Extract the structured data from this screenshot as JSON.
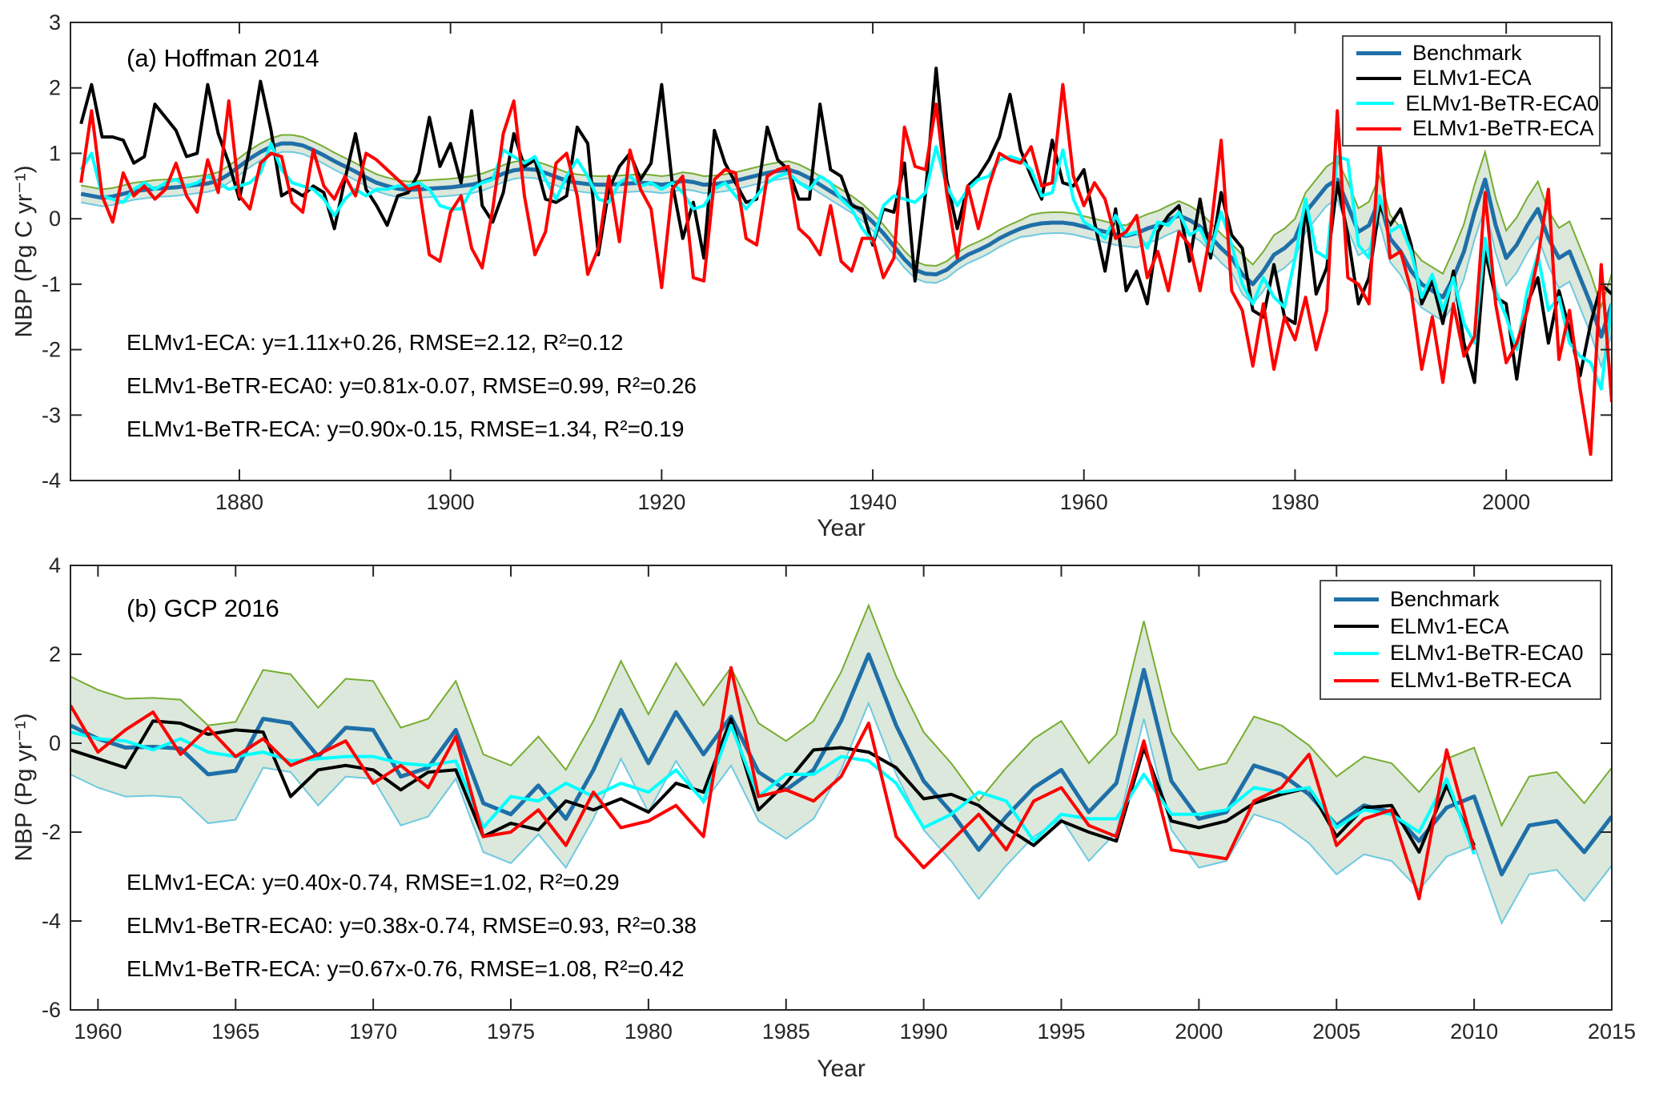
{
  "figure": {
    "background": "#ffffff",
    "axis_color": "#262626",
    "text_color": "#000000"
  },
  "chart_data": [
    {
      "panel": "a",
      "type": "line",
      "title": "(a) Hoffman 2014",
      "xlabel": "Year",
      "ylabel": "NBP (Pg C yr⁻¹)",
      "xlim": [
        1864,
        2010
      ],
      "ylim": [
        -4,
        3
      ],
      "xticks": [
        1880,
        1900,
        1920,
        1940,
        1960,
        1980,
        2000
      ],
      "yticks": [
        -4,
        -3,
        -2,
        -1,
        0,
        1,
        2,
        3
      ],
      "grid": false,
      "legend_position": "top-right",
      "year_start": 1865,
      "band": {
        "name": "benchmark-uncertainty",
        "fill": "rgba(147,186,147,0.33)",
        "upper_color": "#77ac30",
        "lower_color": "#6ec9e0",
        "halfwidth_segments": [
          [
            90,
            0.13
          ],
          [
            10,
            0.16
          ],
          [
            10,
            0.22
          ],
          [
            10,
            0.3
          ],
          [
            10,
            0.36
          ],
          [
            10,
            0.42
          ],
          [
            6,
            0.46
          ]
        ]
      },
      "series": [
        {
          "name": "Benchmark",
          "color": "#1f6fa8",
          "width": 5,
          "values": [
            0.38,
            0.35,
            0.32,
            0.34,
            0.38,
            0.42,
            0.44,
            0.46,
            0.47,
            0.48,
            0.5,
            0.52,
            0.54,
            0.58,
            0.68,
            0.8,
            0.92,
            1.02,
            1.1,
            1.15,
            1.15,
            1.12,
            1.05,
            0.97,
            0.88,
            0.8,
            0.72,
            0.63,
            0.55,
            0.5,
            0.46,
            0.44,
            0.45,
            0.46,
            0.47,
            0.48,
            0.5,
            0.52,
            0.56,
            0.62,
            0.69,
            0.74,
            0.76,
            0.75,
            0.7,
            0.64,
            0.58,
            0.55,
            0.53,
            0.52,
            0.52,
            0.53,
            0.54,
            0.55,
            0.54,
            0.52,
            0.54,
            0.58,
            0.56,
            0.52,
            0.53,
            0.55,
            0.58,
            0.62,
            0.66,
            0.7,
            0.73,
            0.75,
            0.7,
            0.62,
            0.52,
            0.42,
            0.32,
            0.22,
            0.1,
            -0.05,
            -0.22,
            -0.42,
            -0.62,
            -0.78,
            -0.84,
            -0.85,
            -0.78,
            -0.65,
            -0.55,
            -0.48,
            -0.4,
            -0.3,
            -0.22,
            -0.15,
            -0.1,
            -0.07,
            -0.06,
            -0.06,
            -0.08,
            -0.12,
            -0.16,
            -0.2,
            -0.24,
            -0.26,
            -0.22,
            -0.15,
            -0.1,
            -0.02,
            0.05,
            -0.02,
            -0.12,
            -0.28,
            -0.45,
            -0.6,
            -0.85,
            -1.0,
            -0.8,
            -0.55,
            -0.45,
            -0.3,
            0.1,
            0.3,
            0.5,
            0.6,
            0.2,
            -0.2,
            -0.1,
            0.3,
            -0.3,
            -0.5,
            -0.8,
            -1.0,
            -1.1,
            -1.2,
            -0.9,
            -0.5,
            0.1,
            0.6,
            -0.1,
            -0.6,
            -0.4,
            -0.1,
            0.15,
            -0.3,
            -0.6,
            -0.5,
            -0.9,
            -1.3,
            -1.8,
            -1.3
          ]
        },
        {
          "name": "ELMv1-ECA",
          "color": "#000000",
          "width": 4,
          "values": [
            1.45,
            2.05,
            1.25,
            1.25,
            1.2,
            0.85,
            0.95,
            1.75,
            1.55,
            1.35,
            0.95,
            1.0,
            2.05,
            1.3,
            0.85,
            0.3,
            1.1,
            2.1,
            1.35,
            0.35,
            0.45,
            0.35,
            0.5,
            0.4,
            -0.15,
            0.6,
            1.3,
            0.45,
            0.2,
            -0.1,
            0.35,
            0.4,
            0.7,
            1.55,
            0.8,
            1.15,
            0.55,
            1.65,
            0.2,
            -0.05,
            0.4,
            1.3,
            0.8,
            0.9,
            0.3,
            0.25,
            0.35,
            1.4,
            1.15,
            -0.55,
            0.45,
            0.8,
            1.0,
            0.6,
            0.85,
            2.05,
            0.55,
            -0.3,
            0.25,
            -0.6,
            1.35,
            0.85,
            0.55,
            0.25,
            0.3,
            1.4,
            0.9,
            0.75,
            0.3,
            0.3,
            1.75,
            0.75,
            0.65,
            0.2,
            0.15,
            -0.4,
            0.15,
            0.1,
            0.85,
            -0.95,
            0.4,
            2.3,
            0.6,
            -0.15,
            0.5,
            0.65,
            0.9,
            1.25,
            1.9,
            1.05,
            0.65,
            0.3,
            1.2,
            0.55,
            0.5,
            0.75,
            -0.05,
            -0.8,
            0.15,
            -1.1,
            -0.8,
            -1.3,
            -0.2,
            0.05,
            0.2,
            -0.65,
            0.3,
            -0.6,
            0.4,
            -0.25,
            -0.45,
            -1.4,
            -1.5,
            -0.7,
            -1.5,
            -1.6,
            0.2,
            -1.15,
            -0.75,
            0.55,
            -0.25,
            -1.3,
            -0.9,
            0.2,
            -0.1,
            0.15,
            -0.4,
            -1.3,
            -0.95,
            -1.6,
            -0.8,
            -1.9,
            -2.5,
            -0.5,
            -1.2,
            -1.3,
            -2.45,
            -1.3,
            -0.9,
            -1.9,
            -1.1,
            -1.7,
            -2.4,
            -1.6,
            -1.0,
            -1.15
          ]
        },
        {
          "name": "ELMv1-BeTR-ECA0",
          "color": "#00ffff",
          "width": 4,
          "values": [
            0.75,
            1.0,
            0.35,
            0.3,
            0.25,
            0.45,
            0.55,
            0.45,
            0.55,
            0.6,
            0.5,
            0.55,
            0.65,
            0.55,
            0.45,
            0.5,
            0.55,
            0.7,
            1.15,
            0.75,
            0.55,
            0.5,
            0.45,
            0.3,
            0.05,
            0.3,
            0.45,
            0.35,
            0.45,
            0.45,
            0.5,
            0.5,
            0.55,
            0.45,
            0.2,
            0.15,
            0.15,
            0.45,
            0.55,
            0.6,
            1.05,
            0.95,
            0.85,
            0.95,
            0.6,
            0.3,
            0.65,
            0.9,
            0.65,
            0.3,
            0.25,
            0.55,
            0.65,
            0.5,
            0.55,
            0.45,
            0.55,
            0.4,
            0.15,
            0.2,
            0.45,
            0.55,
            0.35,
            0.15,
            0.35,
            0.55,
            0.65,
            0.7,
            0.55,
            0.45,
            0.65,
            0.55,
            0.3,
            0.15,
            -0.15,
            -0.35,
            0.2,
            0.35,
            0.3,
            0.25,
            0.4,
            1.1,
            0.5,
            0.2,
            0.45,
            0.6,
            0.65,
            0.9,
            0.95,
            0.9,
            0.75,
            0.35,
            0.4,
            1.05,
            0.3,
            -0.05,
            -0.15,
            -0.3,
            0.05,
            -0.25,
            -0.2,
            -0.45,
            -0.05,
            -0.1,
            0.1,
            -0.25,
            -0.15,
            -0.5,
            0.1,
            -0.4,
            -1.0,
            -1.3,
            -0.9,
            -1.2,
            -1.35,
            -0.6,
            0.3,
            -0.5,
            -0.6,
            0.95,
            0.9,
            -0.4,
            -0.6,
            0.35,
            -0.2,
            -0.1,
            -0.5,
            -1.2,
            -0.85,
            -1.4,
            -0.9,
            -1.6,
            -1.9,
            -0.3,
            -1.1,
            -1.5,
            -2.0,
            -1.1,
            -0.55,
            -1.4,
            -1.2,
            -1.9,
            -2.1,
            -2.2,
            -2.6,
            -1.3
          ]
        },
        {
          "name": "ELMv1-BeTR-ECA",
          "color": "#ff0000",
          "width": 4,
          "values": [
            0.55,
            1.65,
            0.35,
            -0.05,
            0.7,
            0.35,
            0.5,
            0.3,
            0.45,
            0.85,
            0.35,
            0.1,
            0.9,
            0.4,
            1.8,
            0.35,
            0.15,
            0.85,
            1.0,
            0.95,
            0.25,
            0.1,
            1.05,
            0.5,
            0.3,
            0.65,
            0.35,
            1.0,
            0.9,
            0.75,
            0.6,
            0.45,
            0.5,
            -0.55,
            -0.65,
            0.1,
            0.35,
            -0.45,
            -0.75,
            0.15,
            1.3,
            1.8,
            0.35,
            -0.55,
            -0.2,
            0.85,
            1.0,
            0.35,
            -0.85,
            -0.45,
            0.65,
            -0.35,
            1.05,
            0.45,
            0.15,
            -1.05,
            0.45,
            0.65,
            -0.9,
            -0.95,
            0.6,
            0.75,
            0.7,
            -0.3,
            -0.4,
            0.65,
            0.75,
            0.8,
            -0.15,
            -0.3,
            -0.55,
            0.2,
            -0.65,
            -0.8,
            -0.3,
            -0.3,
            -0.9,
            -0.6,
            1.4,
            0.8,
            0.75,
            1.75,
            0.4,
            -0.6,
            0.5,
            -0.15,
            0.5,
            1.0,
            0.9,
            0.85,
            1.1,
            0.5,
            0.55,
            2.05,
            0.65,
            0.2,
            0.55,
            0.3,
            -0.3,
            -0.2,
            0.05,
            -0.9,
            -0.5,
            -1.1,
            -0.2,
            -0.4,
            -1.1,
            -0.2,
            1.2,
            -1.1,
            -1.4,
            -2.25,
            -1.3,
            -2.3,
            -1.5,
            -1.85,
            -1.2,
            -2.0,
            -1.4,
            1.65,
            -0.9,
            -1.0,
            -1.3,
            1.2,
            -0.6,
            -0.5,
            -1.1,
            -2.3,
            -1.5,
            -2.5,
            -1.3,
            -2.1,
            -1.8,
            0.4,
            -1.3,
            -2.2,
            -1.9,
            -1.4,
            -0.6,
            0.45,
            -2.15,
            -1.4,
            -2.6,
            -3.6,
            -0.7,
            -2.8
          ]
        }
      ],
      "stats_lines": [
        "ELMv1-ECA: y=1.11x+0.26, RMSE=2.12, R²=0.12",
        "ELMv1-BeTR-ECA0: y=0.81x-0.07, RMSE=0.99, R²=0.26",
        "ELMv1-BeTR-ECA: y=0.90x-0.15, RMSE=1.34, R²=0.19"
      ]
    },
    {
      "panel": "b",
      "type": "line",
      "title": "(b) GCP 2016",
      "xlabel": "Year",
      "ylabel": "NBP (Pg yr⁻¹)",
      "xlim": [
        1959,
        2015
      ],
      "ylim": [
        -6,
        4
      ],
      "xticks": [
        1960,
        1965,
        1970,
        1975,
        1980,
        1985,
        1990,
        1995,
        2000,
        2005,
        2010,
        2015
      ],
      "yticks": [
        -6,
        -4,
        -2,
        0,
        2,
        4
      ],
      "grid": false,
      "legend_position": "top-right",
      "year_start": 1959,
      "band": {
        "name": "benchmark-uncertainty",
        "fill": "rgba(147,186,147,0.33)",
        "upper_color": "#77ac30",
        "lower_color": "#6ec9e0",
        "halfwidth_segments": [
          [
            57,
            1.1
          ]
        ]
      },
      "series": [
        {
          "name": "Benchmark",
          "color": "#1f6fa8",
          "width": 5,
          "values": [
            0.4,
            0.1,
            -0.1,
            -0.08,
            -0.12,
            -0.7,
            -0.62,
            0.55,
            0.45,
            -0.3,
            0.35,
            0.3,
            -0.75,
            -0.55,
            0.3,
            -1.35,
            -1.6,
            -0.95,
            -1.7,
            -0.6,
            0.75,
            -0.45,
            0.7,
            -0.25,
            0.6,
            -0.65,
            -1.05,
            -0.6,
            0.5,
            2.0,
            0.4,
            -0.85,
            -1.55,
            -2.4,
            -1.65,
            -1.0,
            -0.6,
            -1.55,
            -0.9,
            1.65,
            -0.85,
            -1.7,
            -1.55,
            -0.5,
            -0.7,
            -1.15,
            -1.85,
            -1.4,
            -1.55,
            -2.2,
            -1.45,
            -1.2,
            -2.95,
            -1.85,
            -1.75,
            -2.45,
            -1.65
          ]
        },
        {
          "name": "ELMv1-ECA",
          "color": "#000000",
          "width": 4,
          "values": [
            -0.15,
            -0.35,
            -0.55,
            0.5,
            0.45,
            0.2,
            0.3,
            0.25,
            -1.2,
            -0.6,
            -0.5,
            -0.6,
            -1.05,
            -0.65,
            -0.6,
            -2.1,
            -1.8,
            -1.95,
            -1.3,
            -1.5,
            -1.25,
            -1.55,
            -0.9,
            -1.1,
            0.55,
            -1.5,
            -0.9,
            -0.15,
            -0.1,
            -0.2,
            -0.55,
            -1.25,
            -1.15,
            -1.4,
            -1.9,
            -2.3,
            -1.75,
            -2.0,
            -2.2,
            -0.1,
            -1.75,
            -1.9,
            -1.75,
            -1.35,
            -1.15,
            -1.0,
            -2.1,
            -1.45,
            -1.4,
            -2.45,
            -0.95,
            -2.3
          ]
        },
        {
          "name": "ELMv1-BeTR-ECA0",
          "color": "#00ffff",
          "width": 4,
          "values": [
            0.25,
            0.1,
            0.05,
            -0.15,
            0.1,
            -0.2,
            -0.3,
            -0.2,
            -0.4,
            -0.35,
            -0.3,
            -0.3,
            -0.45,
            -0.5,
            -0.4,
            -1.9,
            -1.2,
            -1.3,
            -0.9,
            -1.2,
            -0.9,
            -1.1,
            -0.6,
            -1.3,
            0.4,
            -1.2,
            -0.7,
            -0.7,
            -0.3,
            -0.4,
            -0.9,
            -1.9,
            -1.6,
            -1.1,
            -1.3,
            -2.2,
            -1.6,
            -1.7,
            -1.7,
            -0.7,
            -1.6,
            -1.6,
            -1.5,
            -1.0,
            -1.1,
            -1.0,
            -1.9,
            -1.5,
            -1.6,
            -2.0,
            -0.8,
            -2.5
          ]
        },
        {
          "name": "ELMv1-BeTR-ECA",
          "color": "#ff0000",
          "width": 4,
          "values": [
            0.85,
            -0.2,
            0.3,
            0.7,
            -0.25,
            0.35,
            -0.3,
            0.1,
            -0.5,
            -0.25,
            0.05,
            -0.9,
            -0.5,
            -1.0,
            0.15,
            -2.1,
            -2.0,
            -1.5,
            -2.3,
            -1.1,
            -1.9,
            -1.75,
            -1.4,
            -2.1,
            1.7,
            -1.2,
            -1.05,
            -1.3,
            -0.75,
            0.45,
            -2.1,
            -2.8,
            -2.2,
            -1.6,
            -2.4,
            -1.3,
            -1.0,
            -1.85,
            -2.1,
            0.05,
            -2.4,
            -2.5,
            -2.6,
            -1.3,
            -1.0,
            -0.25,
            -2.3,
            -1.7,
            -1.5,
            -3.5,
            -0.15,
            -2.4
          ]
        }
      ],
      "stats_lines": [
        "ELMv1-ECA: y=0.40x-0.74, RMSE=1.02, R²=0.29",
        "ELMv1-BeTR-ECA0: y=0.38x-0.74, RMSE=0.93, R²=0.38",
        "ELMv1-BeTR-ECA: y=0.67x-0.76, RMSE=1.08, R²=0.42"
      ]
    }
  ]
}
